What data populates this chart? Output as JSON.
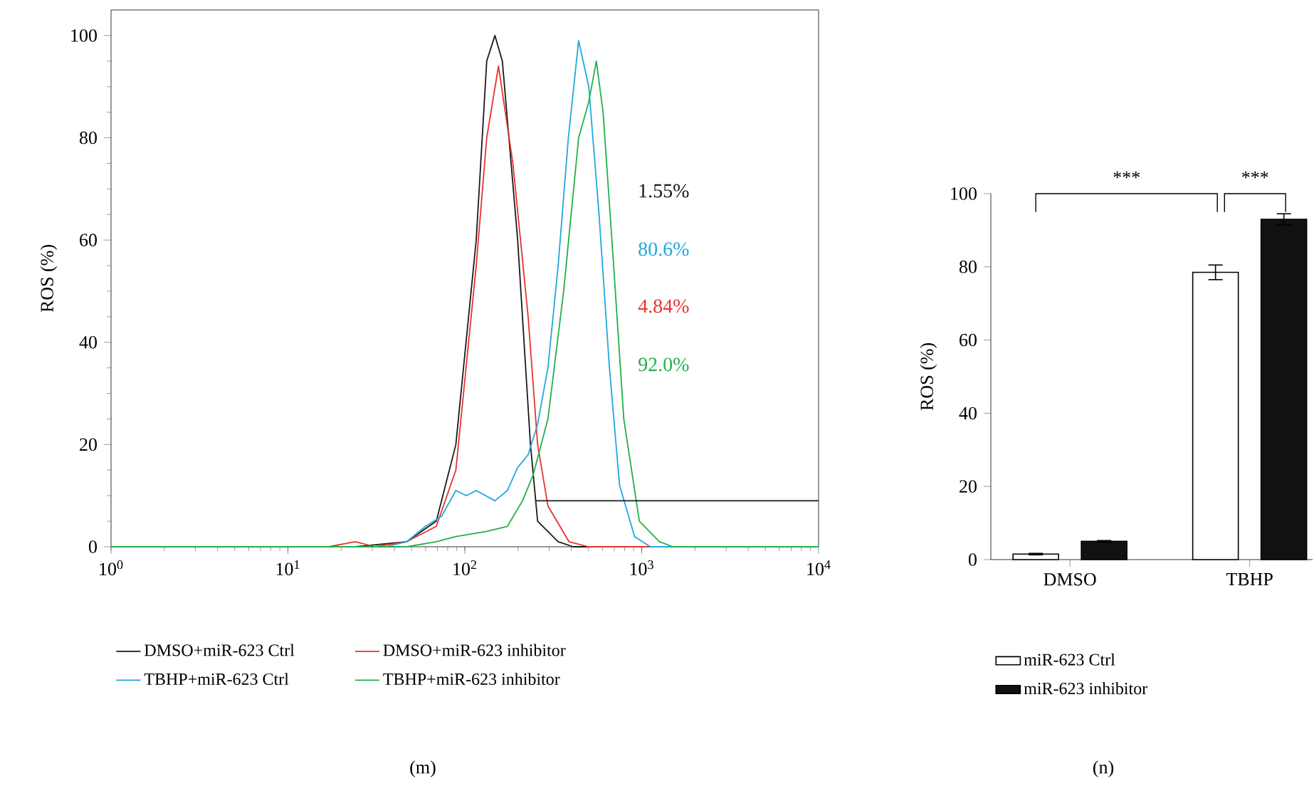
{
  "chart_data": [
    {
      "type": "line",
      "ylabel": "ROS (%)",
      "log": "x",
      "xlim": [
        1,
        10000
      ],
      "ylim": [
        0,
        105
      ],
      "xticks": [
        {
          "value": 1,
          "label": "10$^{0}$"
        },
        {
          "value": 10,
          "label": "10$^{1}$"
        },
        {
          "value": 100,
          "label": "10$^{2}$"
        },
        {
          "value": 1000,
          "label": "10$^{3}$"
        },
        {
          "value": 10000,
          "label": "10$^{4}$"
        }
      ],
      "yticks": [
        0,
        20,
        40,
        60,
        80,
        100
      ],
      "legend": "bottom",
      "series": [
        {
          "name": "DMSO+miR-623 Ctrl",
          "color": "#1a1a1a",
          "x": [
            1,
            24,
            47,
            69,
            89,
            116,
            133,
            148,
            163,
            199,
            235,
            258,
            337,
            410,
            10000
          ],
          "values": [
            0,
            0,
            1,
            5,
            20,
            60,
            95,
            100,
            95,
            60,
            20,
            5,
            1,
            0,
            0
          ]
        },
        {
          "name": "DMSO+miR-623 inhibitor",
          "color": "#e8322c",
          "x": [
            1,
            17,
            24,
            31,
            47,
            69,
            89,
            116,
            133,
            155,
            187,
            228,
            258,
            295,
            388,
            500,
            10000
          ],
          "values": [
            0,
            0,
            1,
            0,
            1,
            4,
            15,
            55,
            80,
            94,
            75,
            45,
            20,
            8,
            1,
            0,
            0
          ]
        },
        {
          "name": "TBHP+miR-623 Ctrl",
          "color": "#20a8e0",
          "x": [
            1,
            36,
            47,
            60,
            74,
            89,
            102,
            116,
            148,
            174,
            199,
            228,
            258,
            295,
            337,
            385,
            440,
            502,
            574,
            657,
            750,
            912,
            1120,
            10000
          ],
          "values": [
            0,
            0,
            1,
            4,
            6,
            11,
            10,
            11,
            9,
            11,
            15.5,
            18,
            24,
            35,
            55,
            80,
            99,
            90,
            65,
            35,
            12,
            2,
            0,
            0
          ]
        },
        {
          "name": "TBHP+miR-623 inhibitor",
          "color": "#22b04a",
          "x": [
            1,
            36,
            47,
            69,
            89,
            133,
            174,
            212,
            243,
            295,
            362,
            440,
            502,
            554,
            605,
            694,
            792,
            970,
            1260,
            1500,
            10000
          ],
          "values": [
            0,
            0,
            0,
            1,
            2,
            3,
            4,
            9,
            14,
            25,
            50,
            80,
            87,
            95,
            85,
            55,
            25,
            5,
            1,
            0,
            0
          ]
        },
        {
          "color": "#1a1a1a",
          "x": [
            250,
            10000
          ],
          "values": [
            9,
            9
          ]
        }
      ],
      "annotations": [
        "1.55%",
        "80.6%",
        "4.84%",
        "92.0%",
        "(m)"
      ]
    },
    {
      "type": "bar",
      "ylabel": "ROS (%)",
      "categories": [
        "DMSO",
        "TBHP"
      ],
      "ylim": [
        0,
        100
      ],
      "yticks": [
        0,
        20,
        40,
        60,
        80,
        100
      ],
      "legend": "bottom",
      "series": [
        {
          "name": "miR-623 Ctrl",
          "color": "#ffffff",
          "values": [
            1.5,
            78.5
          ],
          "errors": [
            0.2,
            2
          ]
        },
        {
          "name": "miR-623 inhibitor",
          "color": "#111111",
          "values": [
            5,
            93
          ],
          "errors": [
            0.2,
            1.5
          ]
        }
      ],
      "annotations": [
        "***",
        "***",
        "(n)"
      ]
    }
  ]
}
